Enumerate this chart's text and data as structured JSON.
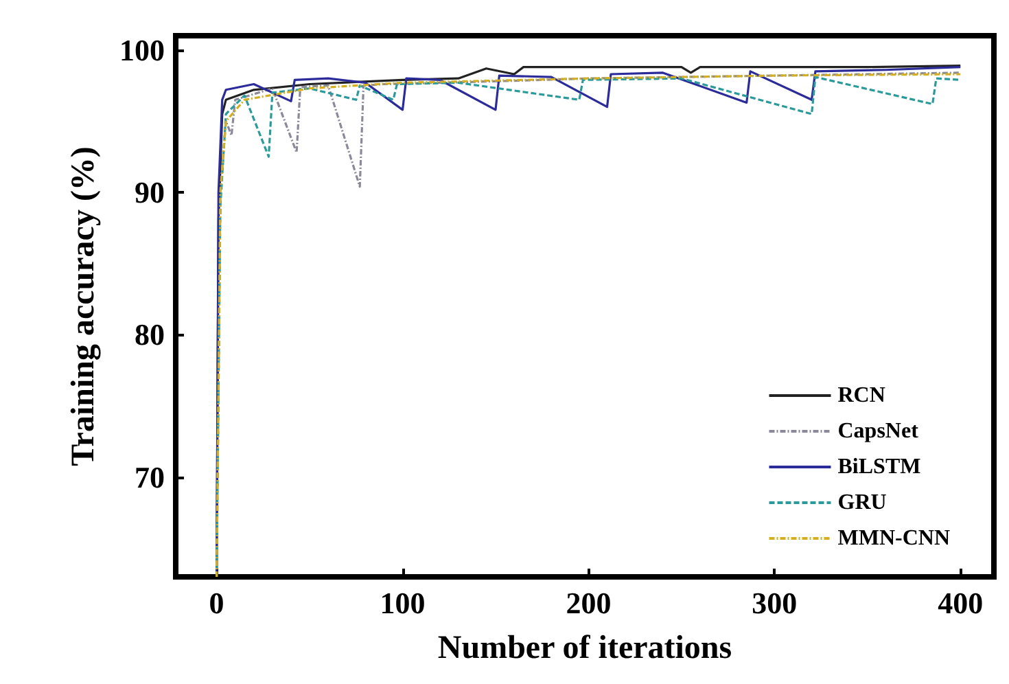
{
  "chart_data": {
    "type": "line",
    "xlabel": "Number of iterations",
    "ylabel": "Training accuracy (%)",
    "xlim": [
      -22,
      418
    ],
    "ylim": [
      63,
      101
    ],
    "xticks": [
      0,
      100,
      200,
      300,
      400
    ],
    "yticks": [
      70,
      80,
      90,
      100
    ],
    "grid": false,
    "legend": "bottom right",
    "marker": "none",
    "series": [
      {
        "name": "RCN",
        "color": "#222222",
        "line_style": "solid",
        "x": [
          0,
          1,
          3,
          5,
          20,
          50,
          100,
          130,
          145,
          160,
          165,
          200,
          250,
          255,
          260,
          300,
          350,
          400
        ],
        "values": [
          63,
          88,
          95.5,
          96.5,
          97.2,
          97.6,
          97.9,
          98.0,
          98.7,
          98.3,
          98.8,
          98.8,
          98.8,
          98.4,
          98.8,
          98.8,
          98.8,
          98.9
        ]
      },
      {
        "name": "CapsNet",
        "color": "#8a8a9a",
        "line_style": "dashdot",
        "x": [
          0,
          2,
          5,
          8,
          10,
          30,
          43,
          45,
          60,
          77,
          79,
          90,
          120,
          150,
          200,
          250,
          300,
          350,
          400
        ],
        "values": [
          63,
          90,
          95,
          94,
          96.5,
          97.3,
          92.8,
          97.4,
          97.5,
          90.4,
          97.5,
          97.6,
          97.7,
          97.8,
          98.0,
          98.1,
          98.2,
          98.3,
          98.4
        ]
      },
      {
        "name": "BiLSTM",
        "color": "#2b2b9a",
        "line_style": "solid",
        "x": [
          0,
          1,
          3,
          5,
          20,
          40,
          42,
          60,
          80,
          100,
          102,
          120,
          150,
          152,
          180,
          210,
          212,
          240,
          285,
          287,
          320,
          322,
          360,
          400
        ],
        "values": [
          63,
          90,
          96.5,
          97.2,
          97.6,
          96.4,
          97.9,
          98.0,
          97.7,
          95.8,
          98.0,
          97.9,
          95.8,
          98.2,
          98.1,
          96.0,
          98.3,
          98.4,
          96.3,
          98.5,
          96.5,
          98.5,
          98.6,
          98.8
        ]
      },
      {
        "name": "GRU",
        "color": "#2a9a9a",
        "line_style": "dashed",
        "x": [
          0,
          2,
          5,
          15,
          28,
          30,
          50,
          75,
          77,
          95,
          97,
          130,
          195,
          197,
          250,
          320,
          322,
          385,
          387,
          400
        ],
        "values": [
          63,
          89,
          95.5,
          96.8,
          92.5,
          97.0,
          97.3,
          96.5,
          97.5,
          96.5,
          97.6,
          97.7,
          96.5,
          97.9,
          98.0,
          95.5,
          98.1,
          96.2,
          98.0,
          97.9
        ]
      },
      {
        "name": "MMN-CNN",
        "color": "#d4b020",
        "line_style": "dashdot",
        "x": [
          0,
          2,
          5,
          15,
          50,
          100,
          200,
          300,
          400
        ],
        "values": [
          63,
          90,
          95,
          96.5,
          97.3,
          97.7,
          98.0,
          98.2,
          98.3
        ]
      }
    ]
  }
}
